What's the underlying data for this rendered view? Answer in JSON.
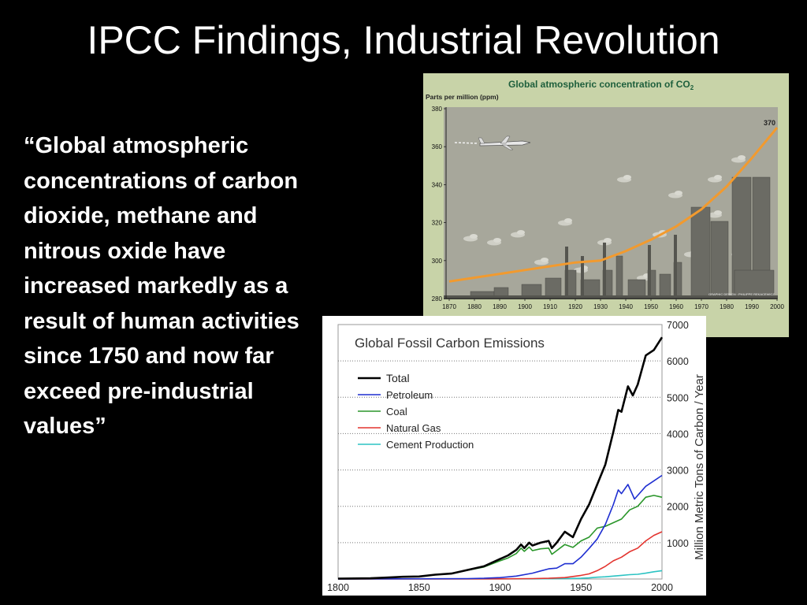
{
  "slide": {
    "title": "IPCC Findings, Industrial Revolution",
    "quote": "“Global atmospheric concentrations of carbon dioxide, methane and nitrous oxide have increased markedly as a result of human activities since 1750 and now far exceed pre-industrial values”"
  },
  "chart_data": [
    {
      "type": "line",
      "title": "Global atmospheric concentration of CO",
      "title_subscript": "2",
      "ylabel": "Parts per million (ppm)",
      "xlabel": "",
      "xlim": [
        1870,
        2000
      ],
      "ylim": [
        280,
        380
      ],
      "x_ticks": [
        1870,
        1880,
        1890,
        1900,
        1910,
        1920,
        1930,
        1940,
        1950,
        1960,
        1970,
        1980,
        1990,
        2000
      ],
      "y_ticks": [
        280,
        300,
        320,
        340,
        360,
        380
      ],
      "grid": false,
      "colors": {
        "line": "#f29a2e",
        "plot_bg": "#a7a79b",
        "panel_bg": "#c8d3a8",
        "title": "#1e5f3c"
      },
      "annotations": [
        {
          "text": "370",
          "x": 2000,
          "y": 370
        }
      ],
      "credit": "GRAPHIC DESIGN : PHILIPPE REKACEWICZ",
      "series": [
        {
          "x": [
            1870,
            1880,
            1890,
            1900,
            1910,
            1920,
            1930,
            1940,
            1950,
            1960,
            1970,
            1980,
            1990,
            2000
          ],
          "values": [
            289,
            291,
            293,
            295,
            297,
            299,
            300,
            305,
            311,
            318,
            327,
            339,
            354,
            370
          ]
        }
      ]
    },
    {
      "type": "line",
      "title": "Global Fossil Carbon Emissions",
      "xlabel": "",
      "ylabel": "Million Metric Tons of Carbon / Year",
      "xlim": [
        1800,
        2000
      ],
      "ylim": [
        0,
        7000
      ],
      "x_ticks": [
        1800,
        1850,
        1900,
        1950,
        2000
      ],
      "y_ticks": [
        1000,
        2000,
        3000,
        4000,
        5000,
        6000,
        7000
      ],
      "grid": "horizontal dotted",
      "legend": "top-left",
      "series": [
        {
          "name": "Total",
          "color": "#000000",
          "x": [
            1800,
            1810,
            1820,
            1830,
            1840,
            1850,
            1860,
            1870,
            1880,
            1890,
            1900,
            1905,
            1910,
            1913,
            1915,
            1918,
            1920,
            1925,
            1930,
            1932,
            1935,
            1940,
            1945,
            1950,
            1955,
            1960,
            1965,
            1970,
            1973,
            1975,
            1979,
            1982,
            1985,
            1990,
            1995,
            2000
          ],
          "values": [
            10,
            15,
            20,
            40,
            60,
            70,
            120,
            150,
            250,
            350,
            550,
            650,
            800,
            950,
            850,
            1000,
            920,
            1000,
            1050,
            850,
            1000,
            1300,
            1150,
            1650,
            2050,
            2600,
            3150,
            4050,
            4650,
            4600,
            5300,
            5050,
            5350,
            6150,
            6300,
            6650
          ]
        },
        {
          "name": "Petroleum",
          "color": "#1f2fd1",
          "x": [
            1800,
            1880,
            1890,
            1900,
            1910,
            1920,
            1925,
            1930,
            1935,
            1940,
            1945,
            1950,
            1955,
            1960,
            1965,
            1970,
            1973,
            1975,
            1979,
            1983,
            1985,
            1990,
            1995,
            2000
          ],
          "values": [
            0,
            10,
            20,
            40,
            80,
            160,
            220,
            280,
            300,
            420,
            420,
            600,
            840,
            1100,
            1500,
            2050,
            2450,
            2350,
            2600,
            2200,
            2300,
            2550,
            2700,
            2850
          ]
        },
        {
          "name": "Coal",
          "color": "#2a962a",
          "x": [
            1800,
            1810,
            1820,
            1830,
            1840,
            1850,
            1860,
            1870,
            1880,
            1890,
            1900,
            1905,
            1910,
            1913,
            1915,
            1918,
            1920,
            1925,
            1930,
            1932,
            1935,
            1940,
            1945,
            1950,
            1955,
            1960,
            1965,
            1970,
            1975,
            1980,
            1985,
            1990,
            1995,
            2000
          ],
          "values": [
            10,
            15,
            20,
            40,
            60,
            70,
            120,
            150,
            240,
            330,
            500,
            580,
            700,
            850,
            760,
            880,
            780,
            830,
            850,
            680,
            780,
            950,
            870,
            1050,
            1150,
            1400,
            1450,
            1550,
            1650,
            1900,
            2000,
            2250,
            2300,
            2250
          ]
        },
        {
          "name": "Natural Gas",
          "color": "#e3342f",
          "x": [
            1800,
            1900,
            1920,
            1930,
            1940,
            1950,
            1955,
            1960,
            1965,
            1970,
            1975,
            1980,
            1985,
            1990,
            1995,
            2000
          ],
          "values": [
            0,
            5,
            10,
            20,
            40,
            100,
            140,
            230,
            350,
            500,
            600,
            750,
            850,
            1050,
            1200,
            1300
          ]
        },
        {
          "name": "Cement Production",
          "color": "#2cc3c3",
          "x": [
            1800,
            1920,
            1940,
            1950,
            1955,
            1960,
            1965,
            1970,
            1975,
            1980,
            1985,
            1990,
            1995,
            2000
          ],
          "values": [
            0,
            5,
            10,
            20,
            30,
            50,
            60,
            80,
            100,
            120,
            130,
            160,
            200,
            230
          ]
        }
      ]
    }
  ]
}
